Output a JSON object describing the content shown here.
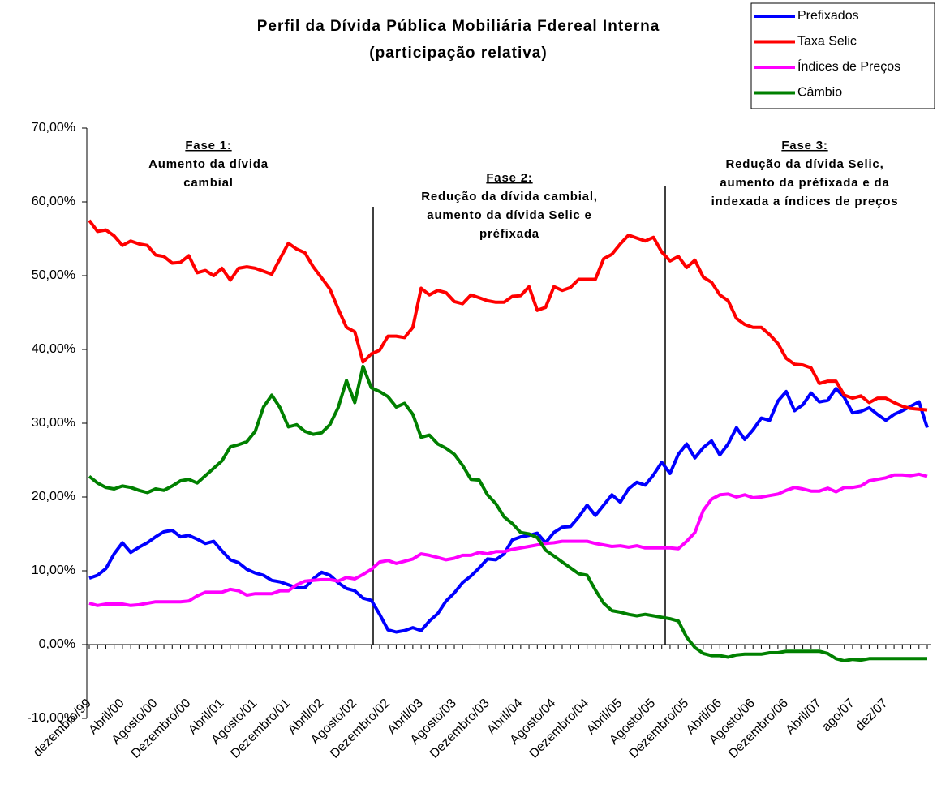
{
  "chart_data": {
    "type": "line",
    "title": "Perfil da Dívida Pública Mobiliária Fdereal Interna",
    "subtitle": "(participação relativa)",
    "categories": [
      "dezembro/99",
      null,
      null,
      null,
      "Abril/00",
      null,
      null,
      null,
      "Agosto/00",
      null,
      null,
      null,
      "Dezembro/00",
      null,
      null,
      null,
      "Abril/01",
      null,
      null,
      null,
      "Agosto/01",
      null,
      null,
      null,
      "Dezembro/01",
      null,
      null,
      null,
      "Abril/02",
      null,
      null,
      null,
      "Agosto/02",
      null,
      null,
      null,
      "Dezembro/02",
      null,
      null,
      null,
      "Abril/03",
      null,
      null,
      null,
      "Agosto/03",
      null,
      null,
      null,
      "Dezembro/03",
      null,
      null,
      null,
      "Abril/04",
      null,
      null,
      null,
      "Agosto/04",
      null,
      null,
      null,
      "Dezembro/04",
      null,
      null,
      null,
      "Abril/05",
      null,
      null,
      null,
      "Agosto/05",
      null,
      null,
      null,
      "Dezembro/05",
      null,
      null,
      null,
      "Abril/06",
      null,
      null,
      null,
      "Agosto/06",
      null,
      null,
      null,
      "Dezembro/06",
      null,
      null,
      null,
      "Abril/07",
      null,
      null,
      null,
      "ago/07",
      null,
      null,
      null,
      "dez/07",
      null,
      null,
      null,
      null,
      null
    ],
    "series": [
      {
        "name": "Prefixados",
        "color": "#0000ff",
        "values": [
          9.0,
          9.4,
          10.3,
          12.3,
          13.8,
          12.5,
          13.2,
          13.8,
          14.6,
          15.3,
          15.5,
          14.6,
          14.8,
          14.3,
          13.7,
          14.0,
          12.7,
          11.5,
          11.1,
          10.2,
          9.7,
          9.4,
          8.7,
          8.5,
          8.1,
          7.7,
          7.7,
          8.9,
          9.8,
          9.4,
          8.4,
          7.6,
          7.3,
          6.3,
          6.0,
          4.1,
          2.0,
          1.7,
          1.9,
          2.3,
          1.9,
          3.2,
          4.2,
          5.9,
          7.0,
          8.4,
          9.3,
          10.4,
          11.6,
          11.5,
          12.3,
          14.2,
          14.6,
          14.8,
          15.1,
          13.8,
          15.2,
          15.9,
          16.0,
          17.3,
          18.9,
          17.5,
          18.9,
          20.3,
          19.3,
          21.1,
          22.0,
          21.6,
          23.0,
          24.7,
          23.2,
          25.8,
          27.2,
          25.3,
          26.7,
          27.6,
          25.7,
          27.2,
          29.4,
          27.8,
          29.1,
          30.7,
          30.4,
          33.0,
          34.3,
          31.7,
          32.5,
          34.1,
          32.9,
          33.1,
          34.7,
          33.5,
          31.4,
          31.6,
          32.1,
          31.2,
          30.4,
          31.2,
          31.7,
          32.3,
          32.9,
          29.4
        ]
      },
      {
        "name": "Taxa Selic",
        "color": "#ff0000",
        "values": [
          57.5,
          56.0,
          56.2,
          55.4,
          54.1,
          54.7,
          54.3,
          54.1,
          52.8,
          52.6,
          51.7,
          51.8,
          52.7,
          50.4,
          50.7,
          50.0,
          51.0,
          49.4,
          51.0,
          51.2,
          51.0,
          50.6,
          50.2,
          52.3,
          54.4,
          53.6,
          53.1,
          51.2,
          49.7,
          48.2,
          45.5,
          43.0,
          42.4,
          38.3,
          39.4,
          39.9,
          41.8,
          41.8,
          41.6,
          43.0,
          48.3,
          47.4,
          48.0,
          47.7,
          46.5,
          46.2,
          47.4,
          47.0,
          46.6,
          46.4,
          46.4,
          47.2,
          47.3,
          48.5,
          45.3,
          45.7,
          48.5,
          48.0,
          48.4,
          49.5,
          49.5,
          49.5,
          52.3,
          52.9,
          54.3,
          55.5,
          55.1,
          54.7,
          55.2,
          53.2,
          52.0,
          52.6,
          51.1,
          52.1,
          49.8,
          49.1,
          47.4,
          46.6,
          44.2,
          43.4,
          43.0,
          43.0,
          42.0,
          40.8,
          38.8,
          38.0,
          37.9,
          37.5,
          35.4,
          35.7,
          35.7,
          33.8,
          33.4,
          33.7,
          32.8,
          33.4,
          33.4,
          32.8,
          32.3,
          32.0,
          31.9,
          31.8
        ]
      },
      {
        "name": "Índices de Preços",
        "color": "#ff00ff",
        "values": [
          5.6,
          5.3,
          5.5,
          5.5,
          5.5,
          5.3,
          5.4,
          5.6,
          5.8,
          5.8,
          5.8,
          5.8,
          5.9,
          6.6,
          7.1,
          7.1,
          7.1,
          7.5,
          7.3,
          6.7,
          6.9,
          6.9,
          6.9,
          7.3,
          7.3,
          8.1,
          8.6,
          8.7,
          8.8,
          8.8,
          8.6,
          9.1,
          8.9,
          9.5,
          10.2,
          11.2,
          11.4,
          11.0,
          11.3,
          11.6,
          12.3,
          12.1,
          11.8,
          11.5,
          11.7,
          12.1,
          12.1,
          12.5,
          12.3,
          12.6,
          12.6,
          12.9,
          13.1,
          13.3,
          13.5,
          13.7,
          13.8,
          14.0,
          14.0,
          14.0,
          14.0,
          13.7,
          13.5,
          13.3,
          13.4,
          13.2,
          13.4,
          13.1,
          13.1,
          13.1,
          13.1,
          13.0,
          14.0,
          15.2,
          18.2,
          19.7,
          20.3,
          20.4,
          20.0,
          20.3,
          19.9,
          20.0,
          20.2,
          20.4,
          20.9,
          21.3,
          21.1,
          20.8,
          20.8,
          21.2,
          20.7,
          21.3,
          21.3,
          21.5,
          22.2,
          22.4,
          22.6,
          23.0,
          23.0,
          22.9,
          23.1,
          22.8
        ]
      },
      {
        "name": "Câmbio",
        "color": "#008000",
        "values": [
          22.8,
          21.9,
          21.3,
          21.1,
          21.5,
          21.3,
          20.9,
          20.6,
          21.1,
          20.9,
          21.5,
          22.2,
          22.4,
          21.9,
          22.9,
          23.9,
          24.9,
          26.8,
          27.1,
          27.5,
          28.9,
          32.2,
          33.8,
          32.1,
          29.5,
          29.8,
          28.9,
          28.5,
          28.7,
          29.8,
          32.1,
          35.8,
          32.8,
          37.7,
          34.8,
          34.3,
          33.6,
          32.2,
          32.7,
          31.2,
          28.1,
          28.4,
          27.2,
          26.6,
          25.8,
          24.3,
          22.4,
          22.3,
          20.3,
          19.1,
          17.3,
          16.4,
          15.2,
          15.0,
          14.5,
          12.8,
          12.0,
          11.2,
          10.4,
          9.6,
          9.4,
          7.4,
          5.6,
          4.6,
          4.4,
          4.1,
          3.9,
          4.1,
          3.9,
          3.7,
          3.5,
          3.2,
          1.0,
          -0.4,
          -1.2,
          -1.5,
          -1.5,
          -1.7,
          -1.4,
          -1.3,
          -1.3,
          -1.3,
          -1.1,
          -1.1,
          -0.9,
          -0.9,
          -0.9,
          -0.9,
          -0.9,
          -1.2,
          -1.9,
          -2.2,
          -2.0,
          -2.1,
          -1.9,
          -1.9,
          -1.9,
          -1.9,
          -1.9,
          -1.9,
          -1.9,
          -1.9
        ]
      }
    ],
    "ylim": [
      -10,
      70
    ],
    "yticks": [
      {
        "value": -10,
        "label": "-10,00%"
      },
      {
        "value": 0,
        "label": "0,00%"
      },
      {
        "value": 10,
        "label": "10,00%"
      },
      {
        "value": 20,
        "label": "20,00%"
      },
      {
        "value": 30,
        "label": "30,00%"
      },
      {
        "value": 40,
        "label": "40,00%"
      },
      {
        "value": 50,
        "label": "50,00%"
      },
      {
        "value": 60,
        "label": "60,00%"
      },
      {
        "value": 70,
        "label": "70,00%"
      }
    ],
    "legend": "top-right",
    "annotations": [
      {
        "lines": [
          "Fase 1:",
          "Aumento da dívida",
          "cambial"
        ]
      },
      {
        "lines": [
          "Fase 2:",
          "Redução da dívida cambial,",
          "aumento da dívida Selic e",
          "préfixada"
        ]
      },
      {
        "lines": [
          "Fase 3:",
          "Redução da dívida Selic,",
          "aumento da préfixada e da",
          "indexada a índices de preços"
        ]
      }
    ]
  }
}
